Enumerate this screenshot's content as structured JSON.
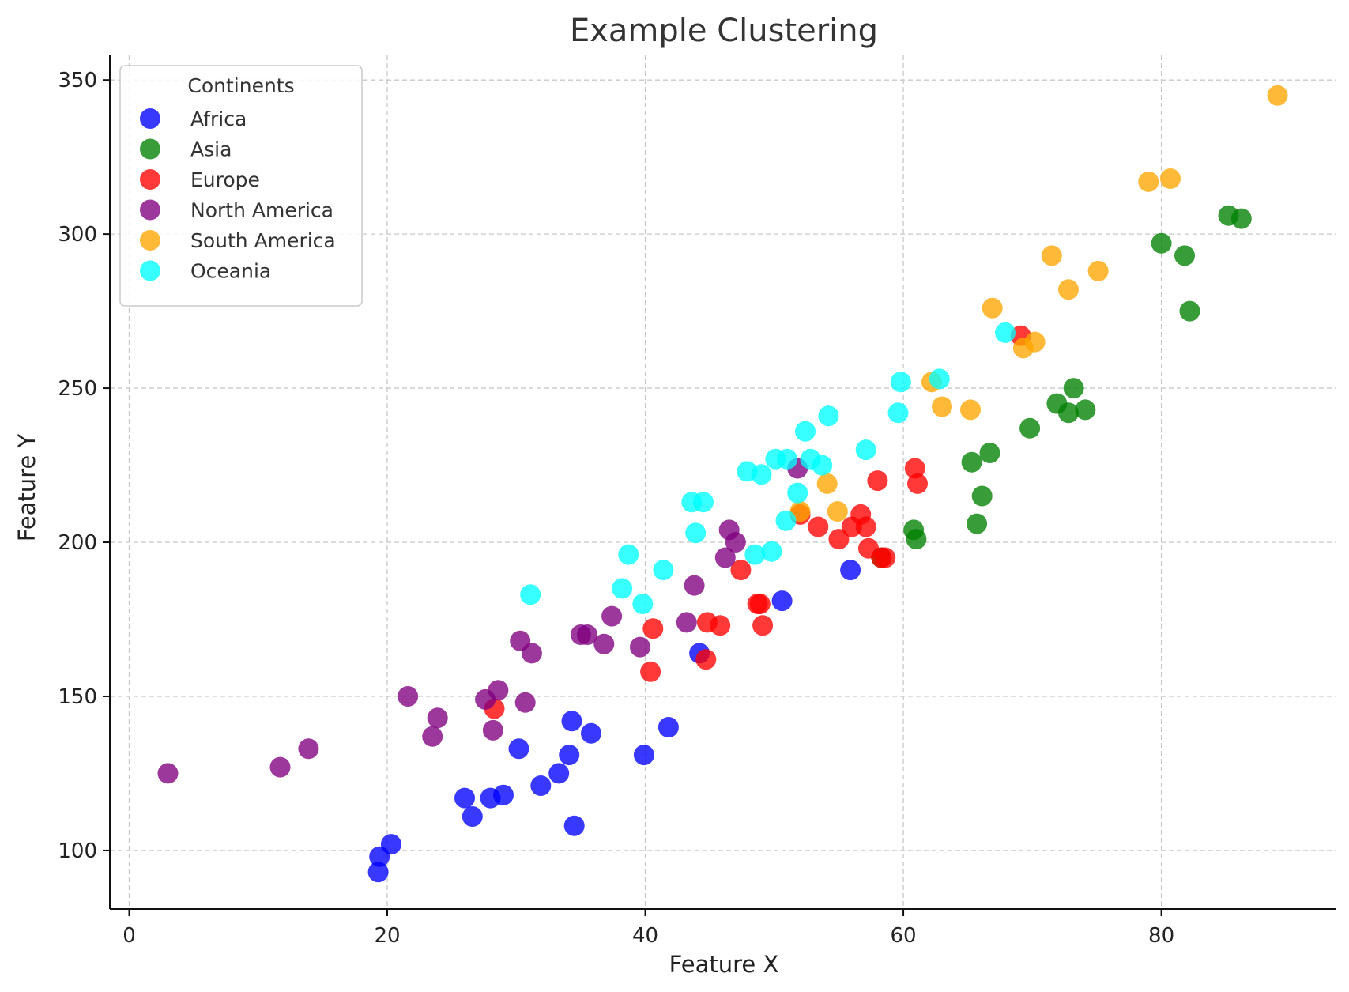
{
  "chart_data": {
    "type": "scatter",
    "title": "Example Clustering",
    "xlabel": "Feature X",
    "ylabel": "Feature Y",
    "xlim": [
      -1.5,
      93.5
    ],
    "ylim": [
      81,
      358
    ],
    "xticks": [
      0,
      20,
      40,
      60,
      80
    ],
    "yticks": [
      100,
      150,
      200,
      250,
      300,
      350
    ],
    "grid": true,
    "legend": {
      "title": "Continents",
      "placement": "top-left"
    },
    "series": [
      {
        "name": "Africa",
        "color": "#0000ff",
        "points": [
          [
            19.3,
            93
          ],
          [
            19.4,
            98
          ],
          [
            20.3,
            102
          ],
          [
            26,
            117
          ],
          [
            26.6,
            111
          ],
          [
            28,
            117
          ],
          [
            29,
            118
          ],
          [
            30.2,
            133
          ],
          [
            31.9,
            121
          ],
          [
            33.3,
            125
          ],
          [
            34.1,
            131
          ],
          [
            34.3,
            142
          ],
          [
            34.5,
            108
          ],
          [
            35.8,
            138
          ],
          [
            39.9,
            131
          ],
          [
            41.8,
            140
          ],
          [
            44.2,
            164
          ],
          [
            50.6,
            181
          ],
          [
            55.9,
            191
          ]
        ]
      },
      {
        "name": "Asia",
        "color": "#008000",
        "points": [
          [
            58.3,
            195
          ],
          [
            60.8,
            204
          ],
          [
            61,
            201
          ],
          [
            65.3,
            226
          ],
          [
            65.7,
            206
          ],
          [
            66.1,
            215
          ],
          [
            66.7,
            229
          ],
          [
            69.8,
            237
          ],
          [
            71.9,
            245
          ],
          [
            72.8,
            242
          ],
          [
            73.2,
            250
          ],
          [
            74.1,
            243
          ],
          [
            80,
            297
          ],
          [
            81.8,
            293
          ],
          [
            82.2,
            275
          ],
          [
            85.2,
            306
          ],
          [
            86.2,
            305
          ]
        ]
      },
      {
        "name": "Europe",
        "color": "#ff0000",
        "points": [
          [
            28.3,
            146
          ],
          [
            40.4,
            158
          ],
          [
            40.6,
            172
          ],
          [
            44.7,
            162
          ],
          [
            44.8,
            174
          ],
          [
            45.8,
            173
          ],
          [
            47.4,
            191
          ],
          [
            48.7,
            180
          ],
          [
            48.9,
            180
          ],
          [
            49.1,
            173
          ],
          [
            52,
            209
          ],
          [
            53.4,
            205
          ],
          [
            55,
            201
          ],
          [
            56,
            205
          ],
          [
            56.7,
            209
          ],
          [
            57.1,
            205
          ],
          [
            57.3,
            198
          ],
          [
            58,
            220
          ],
          [
            58.3,
            195
          ],
          [
            58.6,
            195
          ],
          [
            60.9,
            224
          ],
          [
            61.1,
            219
          ],
          [
            69.1,
            267
          ]
        ]
      },
      {
        "name": "North America",
        "color": "#800080",
        "points": [
          [
            3,
            125
          ],
          [
            11.7,
            127
          ],
          [
            13.9,
            133
          ],
          [
            21.6,
            150
          ],
          [
            23.5,
            137
          ],
          [
            23.9,
            143
          ],
          [
            27.6,
            149
          ],
          [
            28.2,
            139
          ],
          [
            28.6,
            152
          ],
          [
            30.3,
            168
          ],
          [
            30.7,
            148
          ],
          [
            31.2,
            164
          ],
          [
            35,
            170
          ],
          [
            35.5,
            170
          ],
          [
            36.8,
            167
          ],
          [
            37.4,
            176
          ],
          [
            39.6,
            166
          ],
          [
            43.2,
            174
          ],
          [
            43.8,
            186
          ],
          [
            46.2,
            195
          ],
          [
            46.5,
            204
          ],
          [
            47,
            200
          ],
          [
            51.8,
            224
          ]
        ]
      },
      {
        "name": "South America",
        "color": "#ffa500",
        "points": [
          [
            52,
            210
          ],
          [
            54.1,
            219
          ],
          [
            54.9,
            210
          ],
          [
            62.2,
            252
          ],
          [
            63,
            244
          ],
          [
            65.2,
            243
          ],
          [
            66.9,
            276
          ],
          [
            69.3,
            263
          ],
          [
            70.2,
            265
          ],
          [
            71.5,
            293
          ],
          [
            72.8,
            282
          ],
          [
            75.1,
            288
          ],
          [
            79,
            317
          ],
          [
            80.7,
            318
          ],
          [
            89,
            345
          ]
        ]
      },
      {
        "name": "Oceania",
        "color": "#00ffff",
        "points": [
          [
            31.1,
            183
          ],
          [
            38.2,
            185
          ],
          [
            38.7,
            196
          ],
          [
            39.8,
            180
          ],
          [
            41.4,
            191
          ],
          [
            43.6,
            213
          ],
          [
            43.9,
            203
          ],
          [
            44.5,
            213
          ],
          [
            47.9,
            223
          ],
          [
            48.5,
            196
          ],
          [
            49,
            222
          ],
          [
            49.8,
            197
          ],
          [
            50.1,
            227
          ],
          [
            50.9,
            207
          ],
          [
            51,
            227
          ],
          [
            51.8,
            216
          ],
          [
            52.4,
            236
          ],
          [
            52.8,
            227
          ],
          [
            53.7,
            225
          ],
          [
            54.2,
            241
          ],
          [
            57.1,
            230
          ],
          [
            59.6,
            242
          ],
          [
            59.8,
            252
          ],
          [
            62.8,
            253
          ],
          [
            67.9,
            268
          ]
        ]
      }
    ]
  }
}
